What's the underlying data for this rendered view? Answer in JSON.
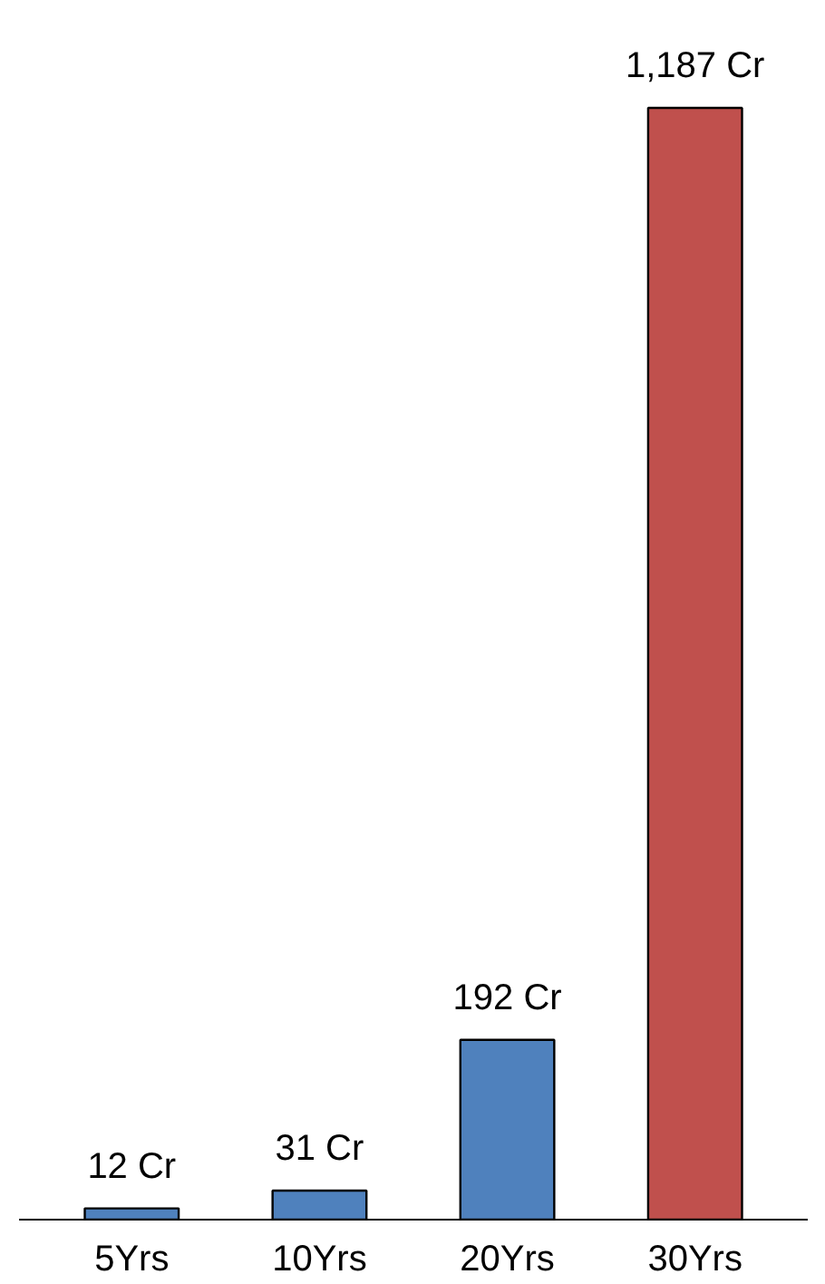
{
  "chart_data": {
    "type": "bar",
    "categories": [
      "5Yrs",
      "10Yrs",
      "20Yrs",
      "30Yrs"
    ],
    "values": [
      12,
      31,
      192,
      1187
    ],
    "colors": [
      "#4f81bd",
      "#4f81bd",
      "#4f81bd",
      "#c0504d"
    ],
    "value_labels": [
      "12 Cr",
      "31 Cr",
      "192 Cr",
      "1,187 Cr"
    ],
    "grid": false
  }
}
